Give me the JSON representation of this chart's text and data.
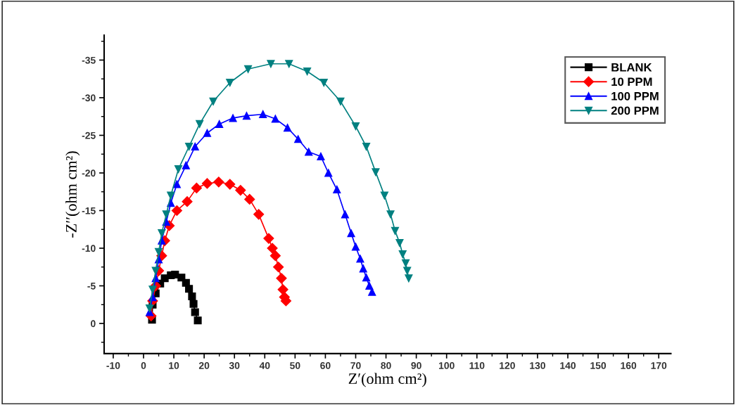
{
  "chart_data": {
    "type": "line",
    "xlabel": "Z′(ohm cm²)",
    "ylabel": "-Z′′(ohm cm²)",
    "xlim": [
      -13,
      174
    ],
    "xticks": [
      -10,
      0,
      10,
      20,
      30,
      40,
      50,
      60,
      70,
      80,
      90,
      100,
      110,
      120,
      130,
      140,
      150,
      160,
      170
    ],
    "ylim": [
      4,
      -38.3
    ],
    "yticks": [
      -35,
      -30,
      -25,
      -20,
      -15,
      -10,
      -5,
      0
    ],
    "grid": false,
    "legend": "top right",
    "line_style": "solid",
    "series": [
      {
        "name": "BLANK",
        "color": "#000000",
        "marker": "square",
        "x": [
          2.8,
          3,
          4,
          5.5,
          7,
          9,
          10.4,
          12.5,
          14,
          15,
          16,
          16.5,
          17,
          17.9
        ],
        "values": [
          -0.5,
          -2.5,
          -4,
          -5.3,
          -6,
          -6.4,
          -6.5,
          -6.1,
          -5.4,
          -4.6,
          -3.6,
          -2.6,
          -1.5,
          -0.4
        ]
      },
      {
        "name": "10 PPM",
        "color": "#ff0000",
        "marker": "diamond",
        "x": [
          2.5,
          3,
          4,
          5,
          6,
          7,
          8.5,
          11,
          14.4,
          17.5,
          21,
          24.8,
          28.5,
          32,
          35,
          38,
          41.3,
          42.5,
          43.5,
          44.5,
          45.5,
          46,
          46.5,
          47
        ],
        "values": [
          -1,
          -3,
          -5,
          -7,
          -9,
          -11,
          -13,
          -15,
          -16.2,
          -18,
          -18.6,
          -18.8,
          -18.5,
          -17.7,
          -16.5,
          -14.5,
          -11.3,
          -10,
          -9,
          -7.5,
          -6,
          -4.5,
          -3.5,
          -3
        ]
      },
      {
        "name": "100 PPM",
        "color": "#0000ff",
        "marker": "triangle",
        "x": [
          2,
          3,
          4,
          5,
          6,
          7.5,
          9,
          11,
          14,
          17,
          21,
          25,
          29.5,
          34,
          39.4,
          43.5,
          47.5,
          51,
          54.5,
          58.5,
          61,
          63.8,
          66.5,
          68.5,
          70,
          71.5,
          72.5,
          73.5,
          74.5,
          75.4
        ],
        "values": [
          -1.5,
          -3.5,
          -6,
          -8.5,
          -11,
          -13.5,
          -16,
          -18.5,
          -21,
          -23.5,
          -25.3,
          -26.5,
          -27.3,
          -27.6,
          -27.8,
          -27.2,
          -26,
          -24.5,
          -22.8,
          -22.2,
          -20,
          -17.8,
          -14.5,
          -12,
          -10.2,
          -8.6,
          -7.3,
          -6.1,
          -5,
          -4.2
        ]
      },
      {
        "name": "200 PPM",
        "color": "#008080",
        "marker": "triangle_down",
        "x": [
          2,
          3,
          4,
          5,
          6,
          7.5,
          9,
          11.5,
          15,
          18.5,
          23,
          28.5,
          34.5,
          42,
          48,
          54,
          59.5,
          65,
          70,
          73.5,
          76.6,
          79.5,
          81.5,
          83,
          84.5,
          85.5,
          86.5,
          87,
          87.5
        ],
        "values": [
          -2,
          -4.5,
          -7,
          -9.5,
          -12,
          -14.5,
          -17,
          -20.5,
          -23.5,
          -26.5,
          -29.5,
          -32,
          -33.8,
          -34.5,
          -34.5,
          -33.5,
          -32,
          -29.5,
          -26.2,
          -23.5,
          -20.1,
          -17,
          -14.5,
          -12.3,
          -10.7,
          -9.2,
          -8,
          -7,
          -6
        ]
      }
    ]
  }
}
